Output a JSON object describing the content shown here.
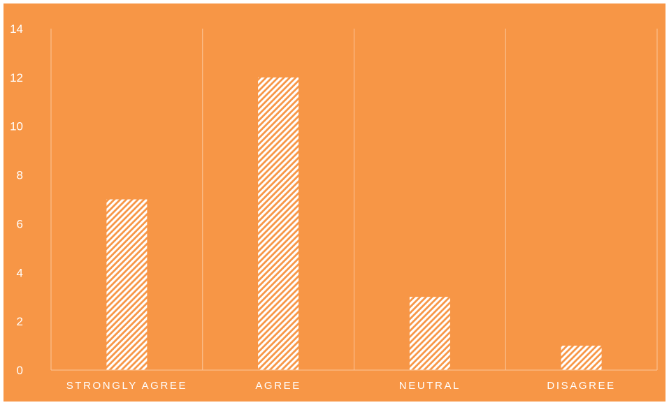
{
  "chart_data": {
    "type": "bar",
    "title": "",
    "xlabel": "",
    "ylabel": "",
    "categories": [
      "STRONGLY AGREE",
      "AGREE",
      "NEUTRAL",
      "DISAGREE"
    ],
    "series": [
      {
        "values": [
          7,
          12,
          3,
          1
        ]
      }
    ],
    "ylim": [
      0,
      14
    ],
    "yticks": [
      "0",
      "2",
      "4",
      "6",
      "8",
      "10",
      "12",
      "14"
    ],
    "grid": "vertical category separators",
    "legend": "none",
    "colors": {
      "background": "#F79646",
      "bar_pattern": "white diagonal hatch",
      "gridline": "#FBC59A",
      "text": "#ffffff"
    }
  }
}
